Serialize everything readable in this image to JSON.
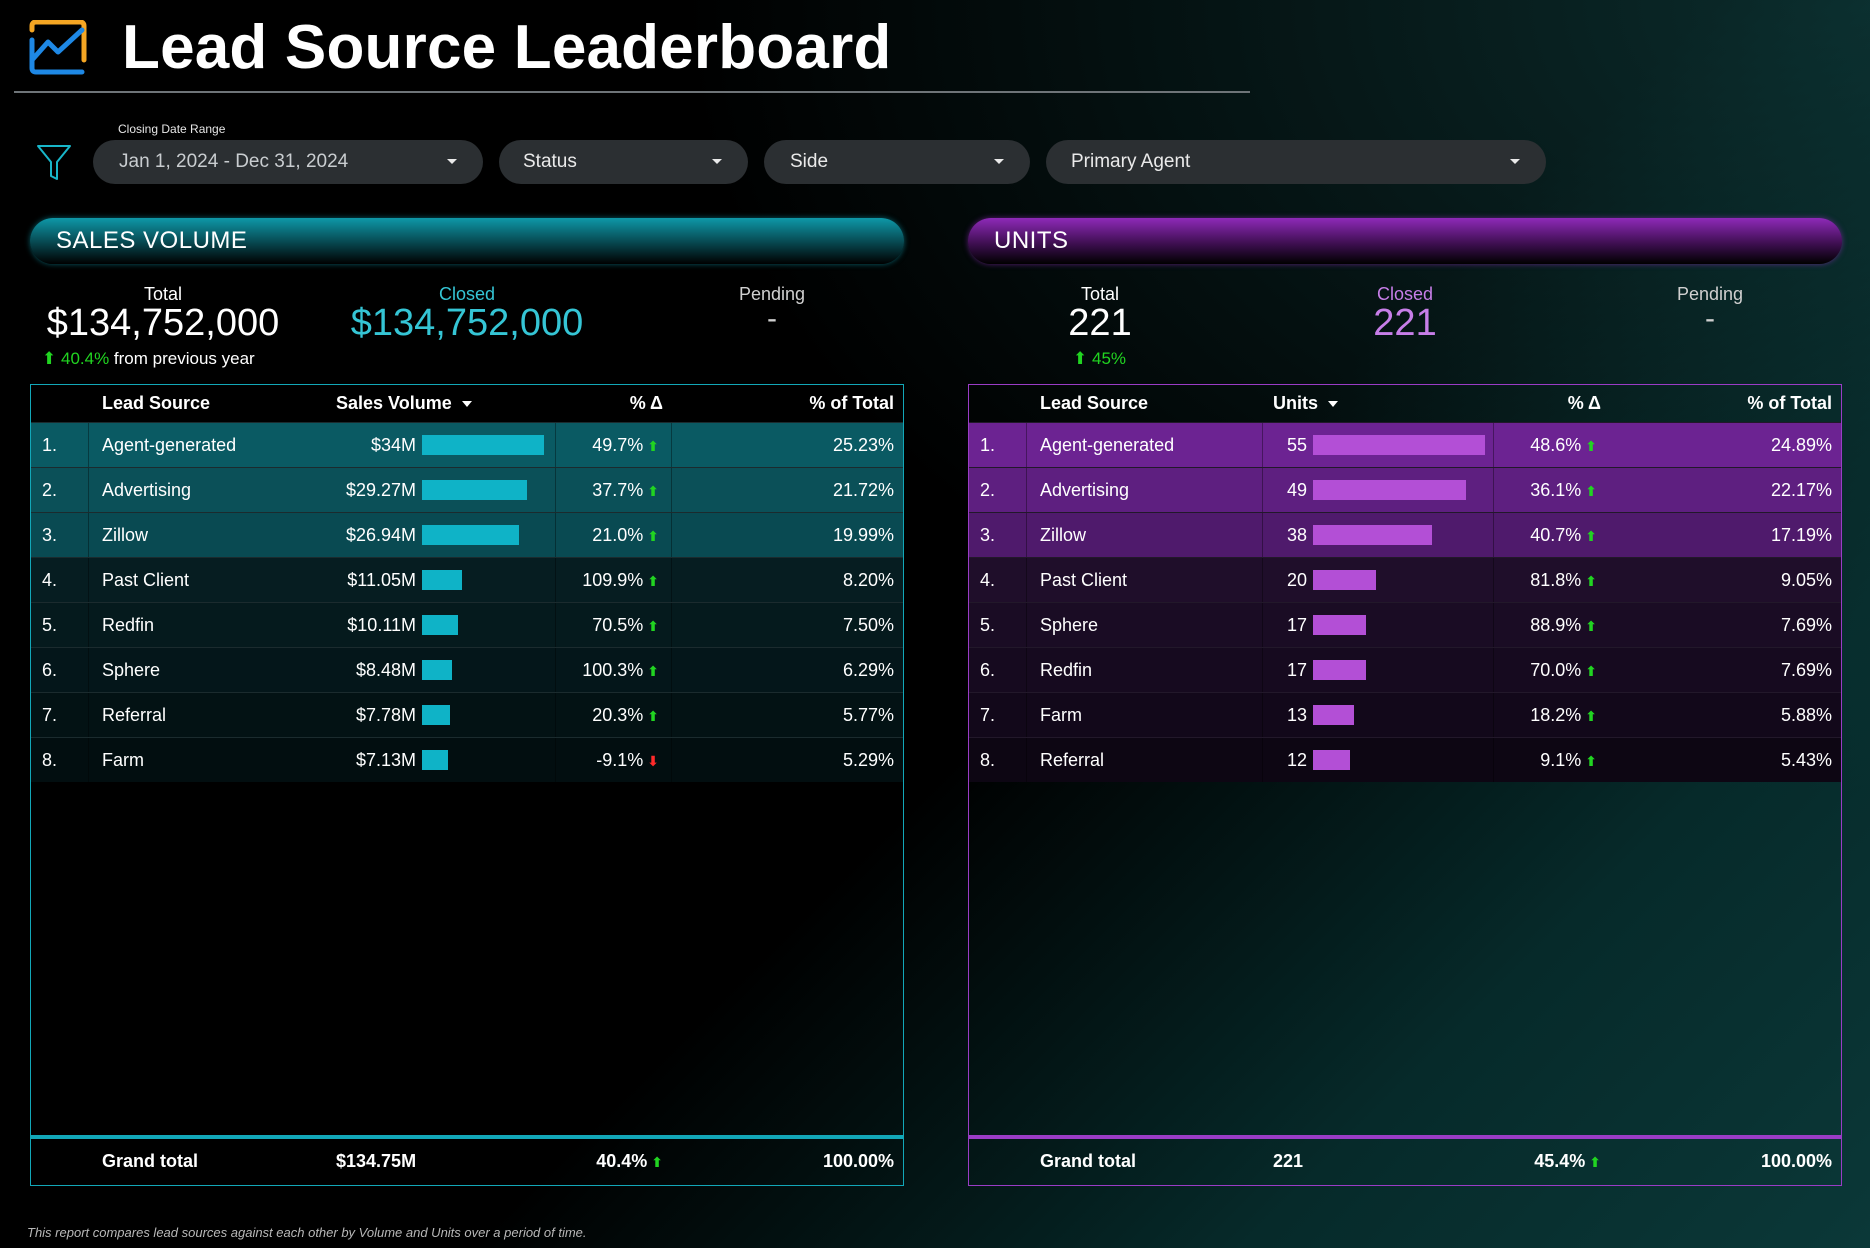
{
  "header": {
    "title": "Lead Source Leaderboard",
    "logo_icon": "chart-trend-icon"
  },
  "filters": {
    "icon": "filter-icon",
    "date_caption": "Closing Date Range",
    "date_value": "Jan 1, 2024 - Dec 31, 2024",
    "status_label": "Status",
    "side_label": "Side",
    "agent_label": "Primary Agent"
  },
  "colors": {
    "teal": "#12a7b8",
    "purple": "#9a3cc6",
    "up": "#21d421",
    "down": "#ff2a2a"
  },
  "sales": {
    "section_title": "SALES VOLUME",
    "kpi": {
      "total_label": "Total",
      "total_value": "$134,752,000",
      "change_value": "40.4%",
      "change_text": "from previous year",
      "closed_label": "Closed",
      "closed_value": "$134,752,000",
      "pending_label": "Pending",
      "pending_value": "-"
    },
    "columns": {
      "source": "Lead Source",
      "metric": "Sales Volume",
      "delta": "% Δ",
      "share": "% of Total"
    },
    "rows": [
      {
        "rank": "1.",
        "source": "Agent-generated",
        "value": "$34M",
        "bar": 1.0,
        "delta": "49.7%",
        "dir": "up",
        "share": "25.23%"
      },
      {
        "rank": "2.",
        "source": "Advertising",
        "value": "$29.27M",
        "bar": 0.861,
        "delta": "37.7%",
        "dir": "up",
        "share": "21.72%"
      },
      {
        "rank": "3.",
        "source": "Zillow",
        "value": "$26.94M",
        "bar": 0.792,
        "delta": "21.0%",
        "dir": "up",
        "share": "19.99%"
      },
      {
        "rank": "4.",
        "source": "Past Client",
        "value": "$11.05M",
        "bar": 0.325,
        "delta": "109.9%",
        "dir": "up",
        "share": "8.20%"
      },
      {
        "rank": "5.",
        "source": "Redfin",
        "value": "$10.11M",
        "bar": 0.297,
        "delta": "70.5%",
        "dir": "up",
        "share": "7.50%"
      },
      {
        "rank": "6.",
        "source": "Sphere",
        "value": "$8.48M",
        "bar": 0.249,
        "delta": "100.3%",
        "dir": "up",
        "share": "6.29%"
      },
      {
        "rank": "7.",
        "source": "Referral",
        "value": "$7.78M",
        "bar": 0.229,
        "delta": "20.3%",
        "dir": "up",
        "share": "5.77%"
      },
      {
        "rank": "8.",
        "source": "Farm",
        "value": "$7.13M",
        "bar": 0.21,
        "delta": "-9.1%",
        "dir": "down",
        "share": "5.29%"
      }
    ],
    "grand_total": {
      "label": "Grand total",
      "value": "$134.75M",
      "delta": "40.4%",
      "share": "100.00%"
    }
  },
  "units": {
    "section_title": "UNITS",
    "kpi": {
      "total_label": "Total",
      "total_value": "221",
      "change_value": "45%",
      "closed_label": "Closed",
      "closed_value": "221",
      "pending_label": "Pending",
      "pending_value": "-"
    },
    "columns": {
      "source": "Lead Source",
      "metric": "Units",
      "delta": "% Δ",
      "share": "% of Total"
    },
    "rows": [
      {
        "rank": "1.",
        "source": "Agent-generated",
        "value": "55",
        "bar": 1.0,
        "delta": "48.6%",
        "dir": "up",
        "share": "24.89%"
      },
      {
        "rank": "2.",
        "source": "Advertising",
        "value": "49",
        "bar": 0.891,
        "delta": "36.1%",
        "dir": "up",
        "share": "22.17%"
      },
      {
        "rank": "3.",
        "source": "Zillow",
        "value": "38",
        "bar": 0.691,
        "delta": "40.7%",
        "dir": "up",
        "share": "17.19%"
      },
      {
        "rank": "4.",
        "source": "Past Client",
        "value": "20",
        "bar": 0.364,
        "delta": "81.8%",
        "dir": "up",
        "share": "9.05%"
      },
      {
        "rank": "5.",
        "source": "Sphere",
        "value": "17",
        "bar": 0.309,
        "delta": "88.9%",
        "dir": "up",
        "share": "7.69%"
      },
      {
        "rank": "6.",
        "source": "Redfin",
        "value": "17",
        "bar": 0.309,
        "delta": "70.0%",
        "dir": "up",
        "share": "7.69%"
      },
      {
        "rank": "7.",
        "source": "Farm",
        "value": "13",
        "bar": 0.236,
        "delta": "18.2%",
        "dir": "up",
        "share": "5.88%"
      },
      {
        "rank": "8.",
        "source": "Referral",
        "value": "12",
        "bar": 0.218,
        "delta": "9.1%",
        "dir": "up",
        "share": "5.43%"
      }
    ],
    "grand_total": {
      "label": "Grand total",
      "value": "221",
      "delta": "45.4%",
      "share": "100.00%"
    }
  },
  "footnote": "This report compares lead sources against each other by Volume and Units over a period of time."
}
